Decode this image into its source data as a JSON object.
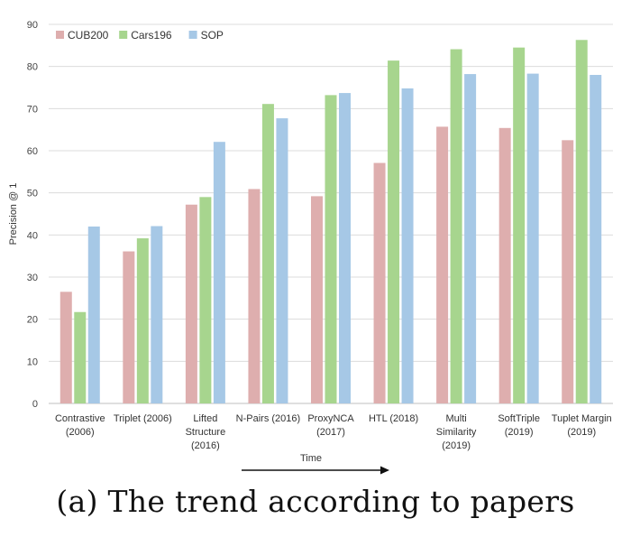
{
  "chart_data": {
    "type": "bar",
    "categories": [
      [
        "Contrastive",
        "(2006)"
      ],
      [
        "Triplet (2006)"
      ],
      [
        "Lifted",
        "Structure",
        "(2016)"
      ],
      [
        "N-Pairs (2016)"
      ],
      [
        "ProxyNCA",
        "(2017)"
      ],
      [
        "HTL (2018)"
      ],
      [
        "Multi",
        "Similarity",
        "(2019)"
      ],
      [
        "SoftTriple",
        "(2019)"
      ],
      [
        "Tuplet Margin",
        "(2019)"
      ]
    ],
    "series": [
      {
        "name": "CUB200",
        "color": "#deaeae",
        "values": [
          26.5,
          36.1,
          47.2,
          50.9,
          49.2,
          57.1,
          65.7,
          65.4,
          62.5
        ]
      },
      {
        "name": "Cars196",
        "color": "#a7d58e",
        "values": [
          21.7,
          39.2,
          49.0,
          71.1,
          73.2,
          81.4,
          84.1,
          84.5,
          86.3
        ]
      },
      {
        "name": "SOP",
        "color": "#a6c8e6",
        "values": [
          42.0,
          42.1,
          62.1,
          67.7,
          73.7,
          74.8,
          78.2,
          78.3,
          78.0
        ]
      }
    ],
    "ylabel": "Precision @ 1",
    "xlabel": "Time",
    "ylim": [
      0,
      90
    ],
    "yticks": [
      0,
      10,
      20,
      30,
      40,
      50,
      60,
      70,
      80,
      90
    ],
    "grid": true,
    "legend_position": "top-left"
  },
  "caption": "(a) The trend according to papers"
}
